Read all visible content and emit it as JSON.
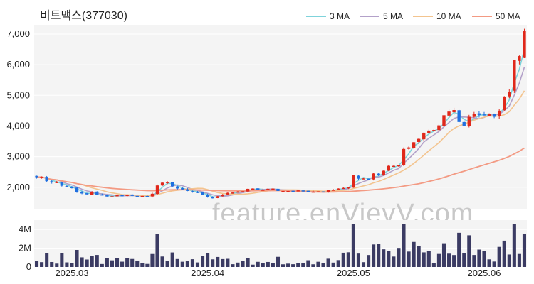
{
  "chart_data": {
    "type": "candlestick",
    "title": "비트맥스(377030)",
    "watermark": "feature.enVievV.com",
    "legend": {
      "placement": "top-right",
      "items": [
        {
          "label": "3 MA",
          "color": "#7fd3db"
        },
        {
          "label": "5 MA",
          "color": "#b3a1c9"
        },
        {
          "label": "10 MA",
          "color": "#f3c48f"
        },
        {
          "label": "50 MA",
          "color": "#f39a83"
        }
      ]
    },
    "colors": {
      "up": "#e0281b",
      "down": "#1f6fe0",
      "volume": "#3b3b63",
      "panel_bg": "#f4f4f4",
      "grid": "#ffffff"
    },
    "price_axis": {
      "range": [
        1300,
        7300
      ],
      "ticks": [
        2000,
        3000,
        4000,
        5000,
        6000,
        7000
      ],
      "tick_labels": [
        "2,000",
        "3,000",
        "4,000",
        "5,000",
        "6,000",
        "7,000"
      ]
    },
    "volume_axis": {
      "range": [
        0,
        5000000
      ],
      "ticks": [
        0,
        2000000,
        4000000
      ],
      "tick_labels": [
        "0",
        "2M",
        "4M"
      ]
    },
    "x_axis": {
      "labels": [
        {
          "label": "2025.03",
          "index": 7
        },
        {
          "label": "2025.04",
          "index": 34
        },
        {
          "label": "2025.05",
          "index": 63
        },
        {
          "label": "2025.06",
          "index": 89
        }
      ]
    },
    "close": [
      2330,
      2340,
      2200,
      2160,
      2170,
      2050,
      2010,
      1990,
      1840,
      1800,
      1770,
      1850,
      1760,
      1750,
      1700,
      1710,
      1740,
      1720,
      1760,
      1720,
      1710,
      1720,
      1710,
      1790,
      2060,
      2150,
      2180,
      2030,
      1960,
      1930,
      1880,
      1850,
      1840,
      1760,
      1680,
      1640,
      1710,
      1760,
      1820,
      1830,
      1860,
      1870,
      1950,
      1960,
      1920,
      1920,
      1950,
      1960,
      1880,
      1880,
      1880,
      1870,
      1900,
      1880,
      1850,
      1860,
      1870,
      1850,
      1920,
      1920,
      1960,
      1980,
      2000,
      2390,
      2280,
      2290,
      2260,
      2450,
      2390,
      2540,
      2700,
      2700,
      2730,
      3250,
      3300,
      3470,
      3580,
      3780,
      3850,
      3870,
      4020,
      4350,
      4470,
      4520,
      4130,
      4000,
      4300,
      4390,
      4360,
      4350,
      4400,
      4300,
      4500,
      4950,
      5120,
      6150,
      6280,
      7100
    ]
  }
}
